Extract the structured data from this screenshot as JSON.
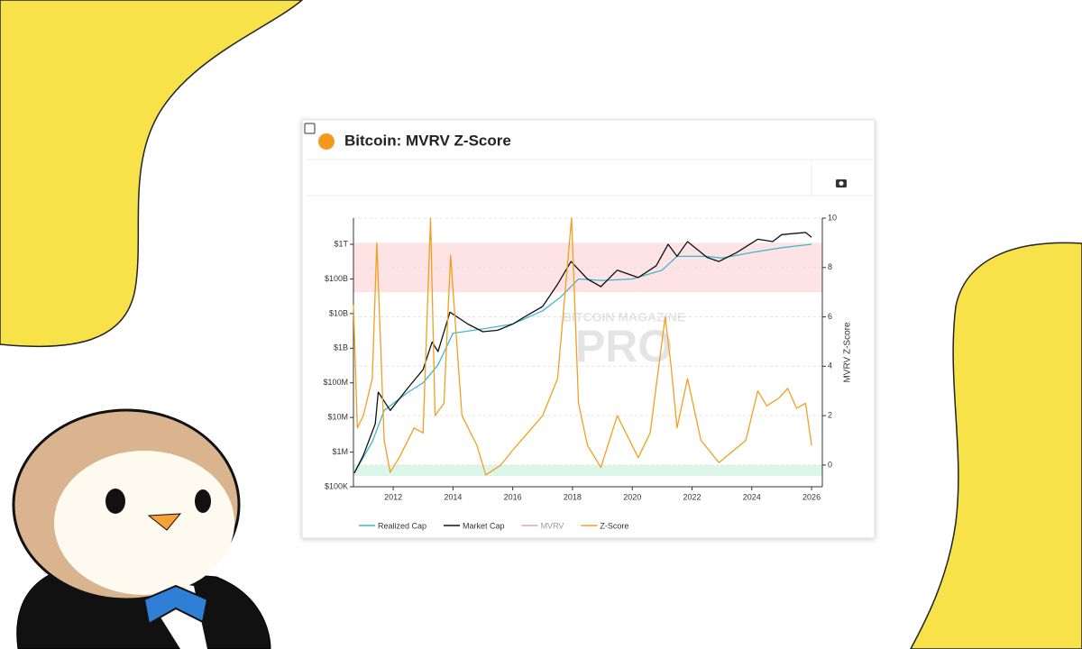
{
  "chart_data": {
    "type": "line",
    "title": "Bitcoin: MVRV Z-Score",
    "watermark": [
      "BITCOIN MAGAZINE",
      "PRO"
    ],
    "y2label": "MVRV Z-Score",
    "log_y": true,
    "grid": true,
    "xlim": [
      2010.67,
      2026.36
    ],
    "xticks": [
      2012,
      2014,
      2016,
      2018,
      2020,
      2022,
      2024,
      2026
    ],
    "ylim": [
      100000,
      5700000000000
    ],
    "yticks": [
      {
        "value": 100000,
        "label": "$100K"
      },
      {
        "value": 1000000,
        "label": "$1M"
      },
      {
        "value": 10000000,
        "label": "$10M"
      },
      {
        "value": 100000000,
        "label": "$100M"
      },
      {
        "value": 1000000000,
        "label": "$1B"
      },
      {
        "value": 10000000000,
        "label": "$10B"
      },
      {
        "value": 100000000000,
        "label": "$100B"
      },
      {
        "value": 1000000000000,
        "label": "$1T"
      }
    ],
    "y2lim": [
      -0.88,
      10
    ],
    "y2ticks": [
      0,
      2,
      4,
      6,
      8,
      10
    ],
    "bands": [
      {
        "from": 7,
        "to": 9,
        "color": "#fde3e3"
      },
      {
        "from": -0.45,
        "to": 0,
        "color": "#dcf6ea"
      }
    ],
    "series": [
      {
        "name": "Realized Cap",
        "color": "#3fb7d0",
        "x": [
          2010.7,
          2011.3,
          2011.7,
          2012.5,
          2013.0,
          2013.5,
          2014.0,
          2015.0,
          2016.0,
          2017.0,
          2017.6,
          2018.2,
          2019.0,
          2020.0,
          2021.0,
          2021.5,
          2022.5,
          2023.0,
          2024.0,
          2025.0,
          2026.0
        ],
        "values": [
          250000,
          2000000,
          16000000,
          54000000,
          100000000,
          330000000,
          2700000000,
          3600000000,
          5000000000,
          12000000000,
          30000000000,
          100000000000,
          90000000000,
          100000000000,
          180000000000,
          450000000000,
          450000000000,
          400000000000,
          580000000000,
          800000000000,
          1000000000000
        ]
      },
      {
        "name": "Market Cap",
        "color": "#111111",
        "x": [
          2010.7,
          2011.0,
          2011.4,
          2011.5,
          2011.9,
          2012.5,
          2013.0,
          2013.3,
          2013.5,
          2013.9,
          2014.5,
          2015.0,
          2015.5,
          2016.0,
          2016.5,
          2017.0,
          2017.5,
          2017.95,
          2018.5,
          2018.95,
          2019.5,
          2020.2,
          2020.8,
          2021.2,
          2021.5,
          2021.85,
          2022.5,
          2022.9,
          2023.5,
          2024.2,
          2024.7,
          2025.0,
          2025.8,
          2026.0
        ],
        "values": [
          250000,
          800000,
          6600000,
          54000000,
          16000000,
          73000000,
          240000000,
          1500000000,
          800000000,
          11000000000,
          5000000000,
          3000000000,
          3300000000,
          5000000000,
          9000000000,
          16000000000,
          70000000000,
          320000000000,
          100000000000,
          60000000000,
          180000000000,
          110000000000,
          240000000000,
          1000000000000,
          450000000000,
          1200000000000,
          420000000000,
          320000000000,
          580000000000,
          1400000000000,
          1200000000000,
          1900000000000,
          2200000000000,
          1600000000000
        ]
      },
      {
        "name": "MVRV",
        "color": "#f4a3a3"
      },
      {
        "name": "Z-Score",
        "color": "#f0a020",
        "axis": "y2",
        "x": [
          2010.67,
          2010.8,
          2011.0,
          2011.3,
          2011.45,
          2011.7,
          2011.9,
          2012.2,
          2012.7,
          2013.0,
          2013.25,
          2013.4,
          2013.7,
          2013.92,
          2014.3,
          2014.8,
          2015.1,
          2015.6,
          2016.0,
          2016.5,
          2017.0,
          2017.5,
          2017.97,
          2018.2,
          2018.5,
          2018.95,
          2019.5,
          2020.2,
          2020.6,
          2021.1,
          2021.3,
          2021.5,
          2021.85,
          2022.3,
          2022.9,
          2023.3,
          2023.8,
          2024.2,
          2024.5,
          2024.9,
          2025.2,
          2025.5,
          2025.8,
          2026.0
        ],
        "values": [
          6.5,
          1.5,
          2,
          3.5,
          9,
          1,
          -0.3,
          0.3,
          1.5,
          1.3,
          10,
          2,
          2.5,
          8.5,
          2,
          0.8,
          -0.4,
          0,
          0.6,
          1.3,
          2,
          3.5,
          10,
          2.5,
          0.8,
          -0.1,
          2,
          0.3,
          1.3,
          6,
          4,
          1.5,
          3.5,
          1,
          0.1,
          0.5,
          1,
          3,
          2.4,
          2.7,
          3.1,
          2.3,
          2.5,
          0.8
        ]
      }
    ]
  }
}
